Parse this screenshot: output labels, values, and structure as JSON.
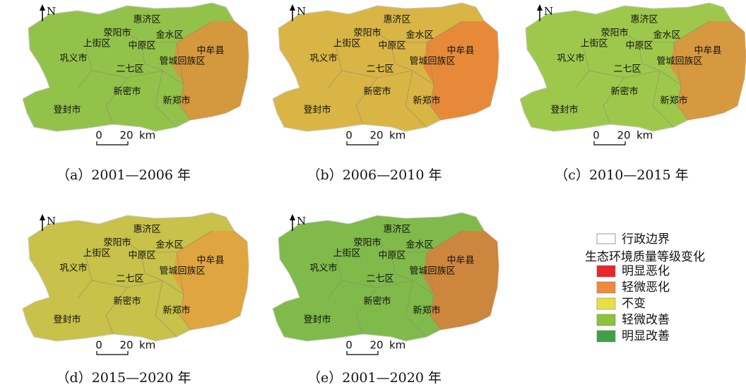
{
  "north": "N",
  "scale_bar": {
    "zero": "0",
    "twenty": "20",
    "unit": "km"
  },
  "district_labels": [
    "惠济区",
    "荥阳市",
    "金水区",
    "上街区",
    "中原区",
    "中牟县",
    "巩义市",
    "管城回族区",
    "二七区",
    "新密市",
    "新郑市",
    "登封市"
  ],
  "panels": [
    {
      "caption": "（a）2001—2006 年",
      "color": "#93c24a",
      "accent": "#e98a3a"
    },
    {
      "caption": "（b）2006—2010 年",
      "color": "#d9b545",
      "accent": "#ea7c35"
    },
    {
      "caption": "（c）2010—2015 年",
      "color": "#9ec84c",
      "accent": "#e88a3c"
    },
    {
      "caption": "（d）2015—2020 年",
      "color": "#c8c14a",
      "accent": "#e79b3e"
    },
    {
      "caption": "（e）2001—2020 年",
      "color": "#7fba4a",
      "accent": "#e6743a"
    }
  ],
  "legend": {
    "boundary": "行政边界",
    "title": "生态环境质量等级变化",
    "items": [
      {
        "label": "明显恶化",
        "color": "#e8262b"
      },
      {
        "label": "轻微恶化",
        "color": "#f08a3a"
      },
      {
        "label": "不变",
        "color": "#e6e043"
      },
      {
        "label": "轻微改善",
        "color": "#8dc13f"
      },
      {
        "label": "明显改善",
        "color": "#3fa046"
      }
    ]
  }
}
